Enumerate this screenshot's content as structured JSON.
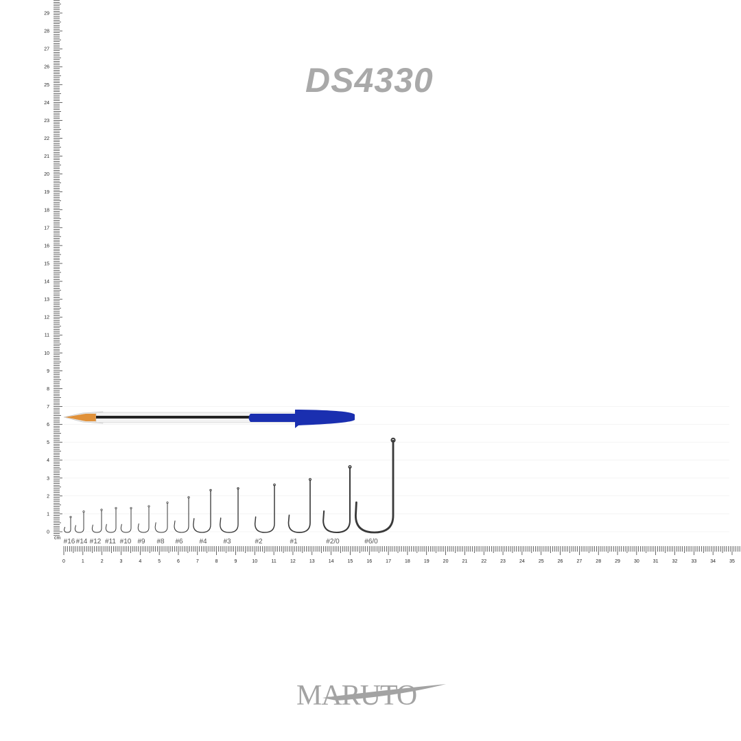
{
  "title": "DS4330",
  "brand": "MARUTO",
  "ruler": {
    "unit": "cm",
    "x_labels": [
      "0",
      "1",
      "2",
      "3",
      "4",
      "5",
      "6",
      "7",
      "8",
      "9",
      "10",
      "11",
      "12",
      "13",
      "14",
      "15",
      "16",
      "17",
      "18",
      "19",
      "20",
      "21",
      "22",
      "23",
      "24",
      "25",
      "26",
      "27",
      "28",
      "29",
      "30",
      "31",
      "32",
      "33",
      "34",
      "35"
    ],
    "y_labels": [
      "0",
      "1",
      "2",
      "3",
      "4",
      "5",
      "6",
      "7",
      "8",
      "9",
      "10",
      "11",
      "12",
      "13",
      "14",
      "15",
      "16",
      "17",
      "18",
      "19",
      "20",
      "21",
      "22",
      "23",
      "24",
      "25",
      "26",
      "27",
      "28",
      "29"
    ]
  },
  "hooks": [
    {
      "size": "#16",
      "length_cm": 0.9
    },
    {
      "size": "#14",
      "length_cm": 1.2
    },
    {
      "size": "#12",
      "length_cm": 1.3
    },
    {
      "size": "#11",
      "length_cm": 1.4
    },
    {
      "size": "#10",
      "length_cm": 1.4
    },
    {
      "size": "#9",
      "length_cm": 1.5
    },
    {
      "size": "#8",
      "length_cm": 1.7
    },
    {
      "size": "#6",
      "length_cm": 2.0
    },
    {
      "size": "#4",
      "length_cm": 2.4
    },
    {
      "size": "#3",
      "length_cm": 2.5
    },
    {
      "size": "#2",
      "length_cm": 2.7
    },
    {
      "size": "#1",
      "length_cm": 3.0
    },
    {
      "size": "#2/0",
      "length_cm": 3.7
    },
    {
      "size": "#6/0",
      "length_cm": 5.2
    }
  ],
  "colors": {
    "title": "#a9a9a9",
    "pen_cap": "#1a2fb0",
    "pen_tip": "#e0913a",
    "hook": "#3a3a3a"
  }
}
